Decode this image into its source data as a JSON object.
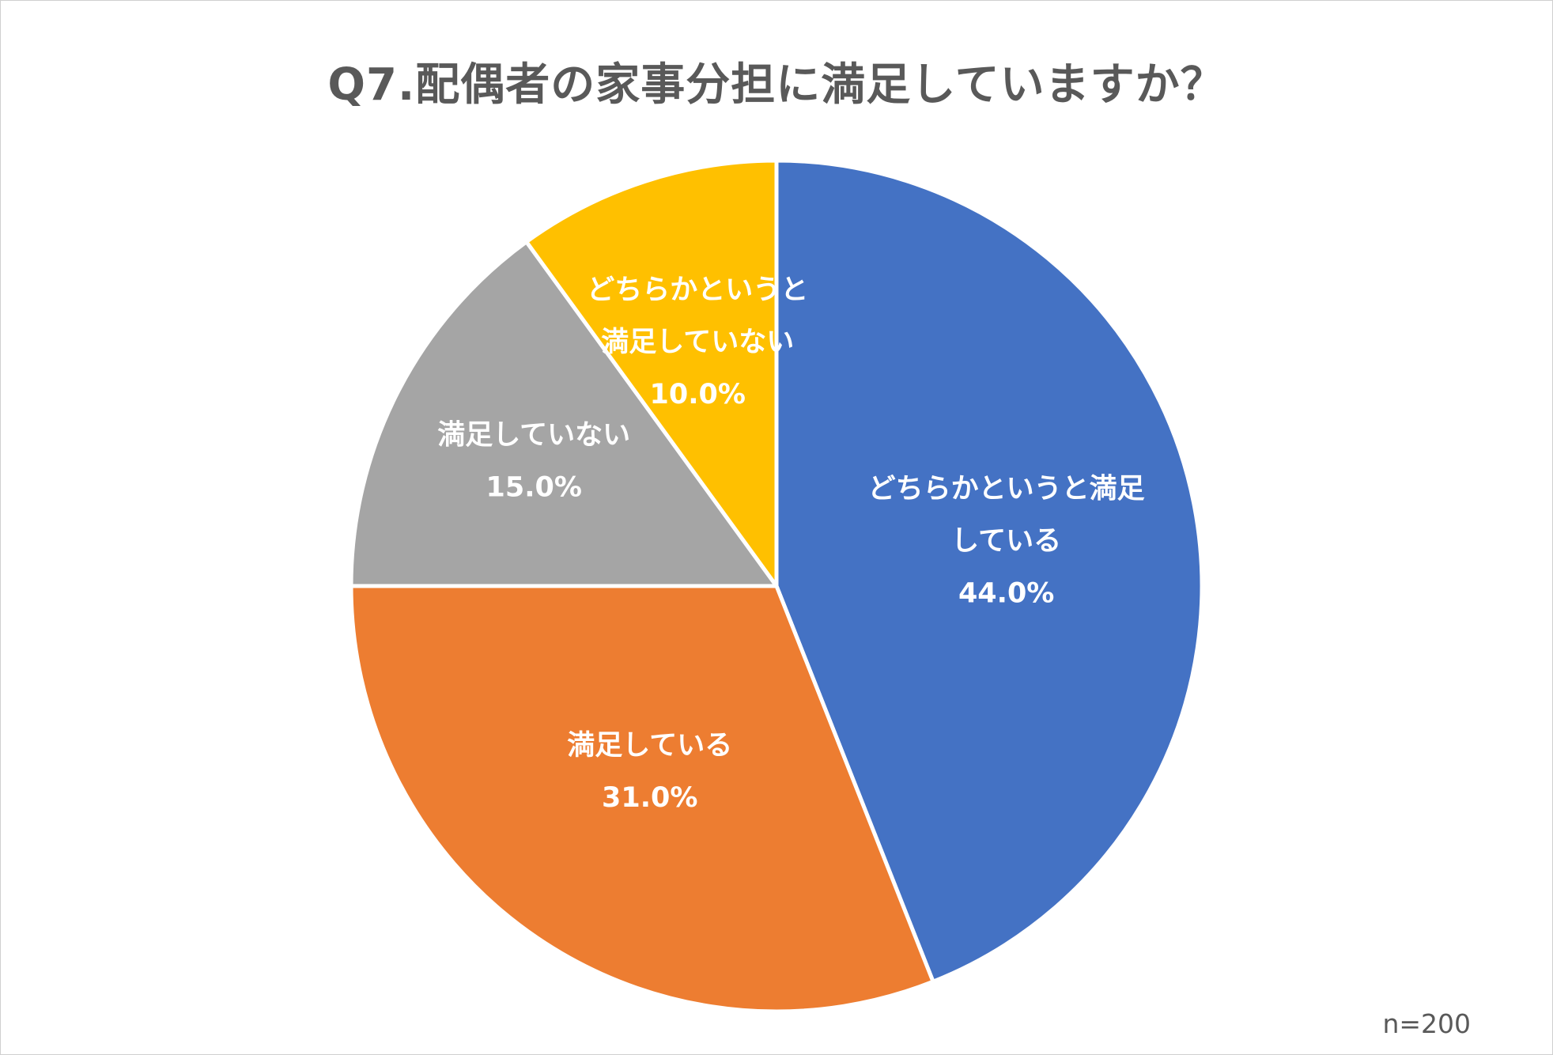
{
  "chart_data": {
    "type": "pie",
    "title": "Q7.配偶者の家事分担に満足していますか？",
    "slices": [
      {
        "label_lines": [
          "どちらかというと満足",
          "している"
        ],
        "value": 44.0,
        "value_label": "44.0%",
        "color": "#4472C4"
      },
      {
        "label_lines": [
          "満足している"
        ],
        "value": 31.0,
        "value_label": "31.0%",
        "color": "#ED7D31"
      },
      {
        "label_lines": [
          "満足していない"
        ],
        "value": 15.0,
        "value_label": "15.0%",
        "color": "#A5A5A5"
      },
      {
        "label_lines": [
          "どちらかというと",
          "満足していない"
        ],
        "value": 10.0,
        "value_label": "10.0%",
        "color": "#FFC000"
      }
    ],
    "start_angle": "12 o'clock",
    "direction": "clockwise",
    "legend": "none",
    "note": "n=200"
  }
}
